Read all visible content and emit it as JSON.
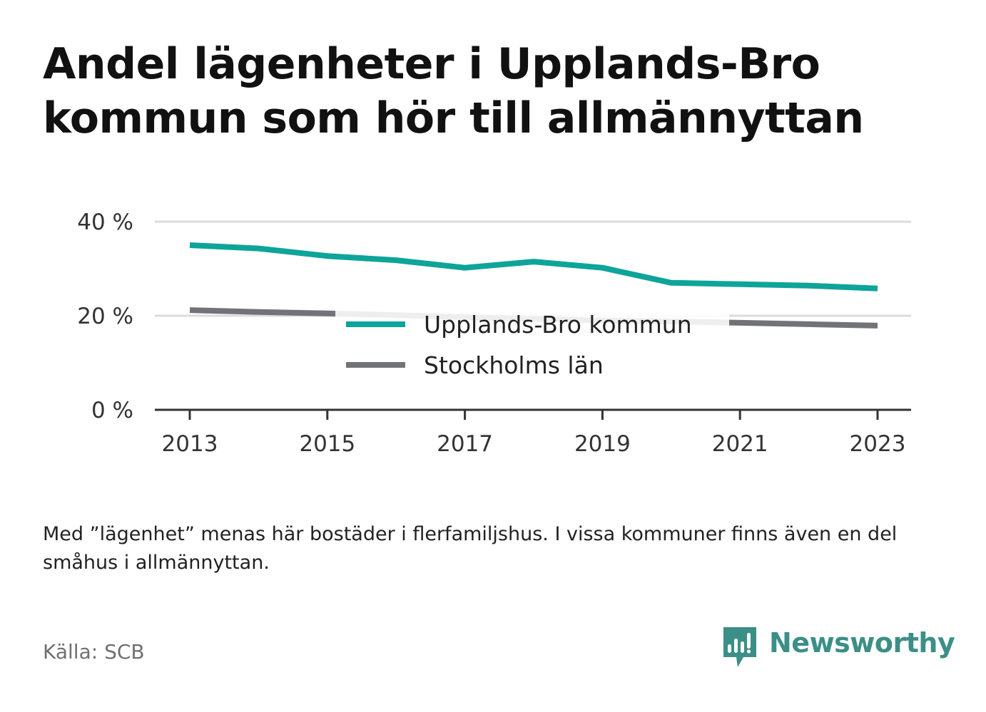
{
  "title": "Andel lägenheter i Upplands-Bro kommun som hör till allmännyttan",
  "footnote": "Med ”lägenhet” menas här bostäder i flerfamiljshus. I vissa kommuner finns även en del småhus i allmännyttan.",
  "source": "Källa: SCB",
  "brand": {
    "name": "Newsworthy",
    "icon": "newsworthy-logo-icon",
    "color": "#3b8f86"
  },
  "chart_data": {
    "type": "line",
    "title": "Andel lägenheter i Upplands-Bro kommun som hör till allmännyttan",
    "xlabel": "",
    "ylabel": "",
    "ylim": [
      0,
      40
    ],
    "xlim": [
      2013,
      2023
    ],
    "yticks": [
      0,
      20,
      40
    ],
    "ytick_labels": [
      "0 %",
      "20 %",
      "40 %"
    ],
    "xticks": [
      2013,
      2015,
      2017,
      2019,
      2021,
      2023
    ],
    "xtick_labels": [
      "2013",
      "2015",
      "2017",
      "2019",
      "2021",
      "2023"
    ],
    "grid": "horizontal",
    "legend_position": "center",
    "x": [
      2013,
      2014,
      2015,
      2016,
      2017,
      2018,
      2019,
      2020,
      2021,
      2022,
      2023
    ],
    "series": [
      {
        "name": "Upplands-Bro kommun",
        "color": "#0ea49a",
        "values": [
          35.0,
          34.3,
          32.7,
          31.8,
          30.2,
          31.5,
          30.2,
          27.0,
          26.7,
          26.4,
          25.8
        ]
      },
      {
        "name": "Stockholms län",
        "color": "#727279",
        "values": [
          21.2,
          20.8,
          20.5,
          20.1,
          19.7,
          19.3,
          19.0,
          18.8,
          18.5,
          18.2,
          17.9
        ]
      }
    ]
  }
}
